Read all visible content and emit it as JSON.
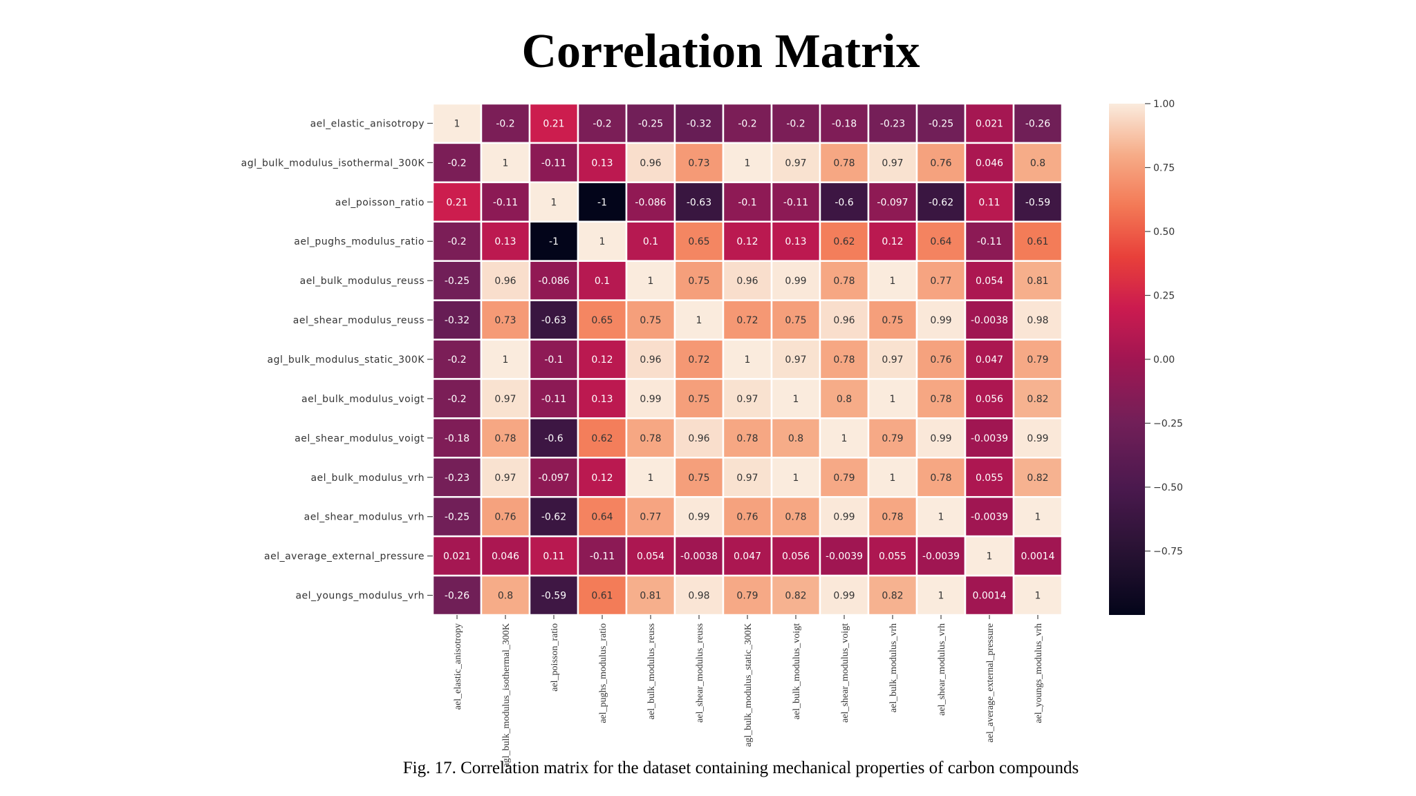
{
  "page": {
    "title": "Correlation Matrix",
    "caption": "Fig. 17. Correlation matrix for the dataset containing mechanical properties of carbon compounds"
  },
  "chart_data": {
    "type": "heatmap",
    "title": "Correlation Matrix",
    "labels": [
      "ael_elastic_anisotropy",
      "agl_bulk_modulus_isothermal_300K",
      "ael_poisson_ratio",
      "ael_pughs_modulus_ratio",
      "ael_bulk_modulus_reuss",
      "ael_shear_modulus_reuss",
      "agl_bulk_modulus_static_300K",
      "ael_bulk_modulus_voigt",
      "ael_shear_modulus_voigt",
      "ael_bulk_modulus_vrh",
      "ael_shear_modulus_vrh",
      "ael_average_external_pressure",
      "ael_youngs_modulus_vrh"
    ],
    "values": [
      [
        1,
        -0.2,
        0.21,
        -0.2,
        -0.25,
        -0.32,
        -0.2,
        -0.2,
        -0.18,
        -0.23,
        -0.25,
        0.021,
        -0.26
      ],
      [
        -0.2,
        1,
        -0.11,
        0.13,
        0.96,
        0.73,
        1,
        0.97,
        0.78,
        0.97,
        0.76,
        0.046,
        0.8
      ],
      [
        0.21,
        -0.11,
        1,
        -1,
        -0.086,
        -0.63,
        -0.1,
        -0.11,
        -0.6,
        -0.097,
        -0.62,
        0.11,
        -0.59
      ],
      [
        -0.2,
        0.13,
        -1,
        1,
        0.1,
        0.65,
        0.12,
        0.13,
        0.62,
        0.12,
        0.64,
        -0.11,
        0.61
      ],
      [
        -0.25,
        0.96,
        -0.086,
        0.1,
        1,
        0.75,
        0.96,
        0.99,
        0.78,
        1,
        0.77,
        0.054,
        0.81
      ],
      [
        -0.32,
        0.73,
        -0.63,
        0.65,
        0.75,
        1,
        0.72,
        0.75,
        0.96,
        0.75,
        0.99,
        -0.0038,
        0.98
      ],
      [
        -0.2,
        1,
        -0.1,
        0.12,
        0.96,
        0.72,
        1,
        0.97,
        0.78,
        0.97,
        0.76,
        0.047,
        0.79
      ],
      [
        -0.2,
        0.97,
        -0.11,
        0.13,
        0.99,
        0.75,
        0.97,
        1,
        0.8,
        1,
        0.78,
        0.056,
        0.82
      ],
      [
        -0.18,
        0.78,
        -0.6,
        0.62,
        0.78,
        0.96,
        0.78,
        0.8,
        1,
        0.79,
        0.99,
        -0.0039,
        0.99
      ],
      [
        -0.23,
        0.97,
        -0.097,
        0.12,
        1,
        0.75,
        0.97,
        1,
        0.79,
        1,
        0.78,
        0.055,
        0.82
      ],
      [
        -0.25,
        0.76,
        -0.62,
        0.64,
        0.77,
        0.99,
        0.76,
        0.78,
        0.99,
        0.78,
        1,
        -0.0039,
        1
      ],
      [
        0.021,
        0.046,
        0.11,
        -0.11,
        0.054,
        -0.0038,
        0.047,
        0.056,
        -0.0039,
        0.055,
        -0.0039,
        1,
        0.0014
      ],
      [
        -0.26,
        0.8,
        -0.59,
        0.61,
        0.81,
        0.98,
        0.79,
        0.82,
        0.99,
        0.82,
        1,
        0.0014,
        1
      ]
    ],
    "colorbar": {
      "range": [
        -1,
        1
      ],
      "ticks": [
        1.0,
        0.75,
        0.5,
        0.25,
        0.0,
        -0.25,
        -0.5,
        -0.75
      ],
      "tick_labels": [
        "1.00",
        "0.75",
        "0.50",
        "0.25",
        "0.00",
        "−0.25",
        "−0.50",
        "−0.75"
      ],
      "colormap": "rocket",
      "placement": "right"
    }
  }
}
